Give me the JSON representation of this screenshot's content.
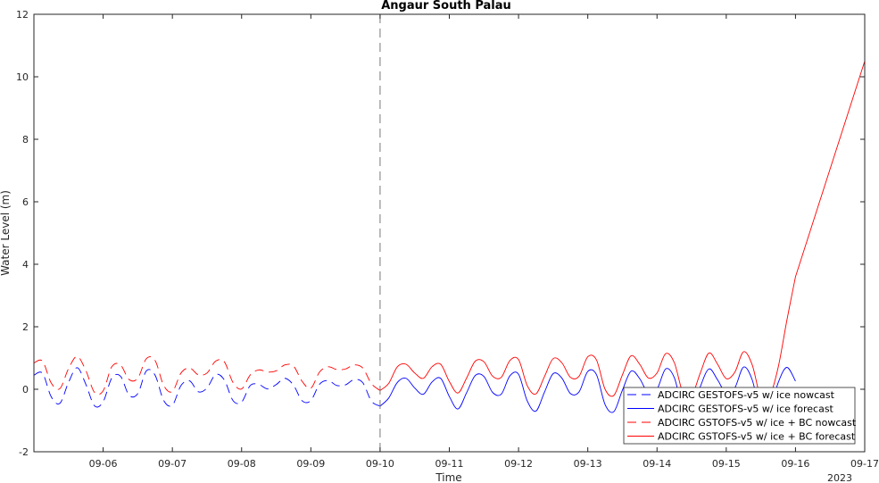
{
  "chart_data": {
    "type": "line",
    "title": "Angaur South Palau",
    "xlabel": "Time",
    "ylabel": "Water Level (m)",
    "year_label": "2023",
    "x_unit": "date",
    "xlim": [
      "2023-09-05",
      "2023-09-17"
    ],
    "ylim": [
      -2,
      12
    ],
    "x_ticks": [
      "09-06",
      "09-07",
      "09-08",
      "09-09",
      "09-10",
      "09-11",
      "09-12",
      "09-13",
      "09-14",
      "09-15",
      "09-16",
      "09-17"
    ],
    "y_ticks": [
      "-2",
      "0",
      "2",
      "4",
      "6",
      "8",
      "10",
      "12"
    ],
    "nowcast_boundary": "2023-09-10",
    "grid": false,
    "legend_position": "bottom-right",
    "series": [
      {
        "name": "ADCIRC GESTOFS-v5 w/ ice nowcast",
        "color": "#0000ff",
        "dash": true,
        "x": [
          "09-05 00:00",
          "09-05 03:00",
          "09-05 06:00",
          "09-05 09:00",
          "09-05 12:00",
          "09-05 15:00",
          "09-05 18:00",
          "09-05 21:00",
          "09-06 00:00",
          "09-06 03:00",
          "09-06 06:00",
          "09-06 09:00",
          "09-06 12:00",
          "09-06 15:00",
          "09-06 18:00",
          "09-06 21:00",
          "09-07 00:00",
          "09-07 03:00",
          "09-07 06:00",
          "09-07 09:00",
          "09-07 12:00",
          "09-07 15:00",
          "09-07 18:00",
          "09-07 21:00",
          "09-08 00:00",
          "09-08 03:00",
          "09-08 06:00",
          "09-08 09:00",
          "09-08 12:00",
          "09-08 15:00",
          "09-08 18:00",
          "09-08 21:00",
          "09-09 00:00",
          "09-09 03:00",
          "09-09 06:00",
          "09-09 09:00",
          "09-09 12:00",
          "09-09 15:00",
          "09-09 18:00",
          "09-09 21:00",
          "09-10 00:00"
        ],
        "y": [
          0.45,
          0.51,
          -0.24,
          -0.45,
          0.22,
          0.69,
          0.16,
          -0.53,
          -0.4,
          0.36,
          0.42,
          -0.19,
          -0.14,
          0.59,
          0.45,
          -0.36,
          -0.51,
          0.12,
          0.27,
          -0.08,
          0.04,
          0.47,
          0.3,
          -0.36,
          -0.41,
          0.12,
          0.15,
          0.01,
          0.15,
          0.35,
          0.13,
          -0.37,
          -0.36,
          0.16,
          0.28,
          0.12,
          0.14,
          0.31,
          0.21,
          -0.38,
          -0.54
        ]
      },
      {
        "name": "ADCIRC GESTOFS-v5 w/ ice forecast",
        "color": "#0000ff",
        "dash": false,
        "x": [
          "09-10 00:00",
          "09-10 03:00",
          "09-10 06:00",
          "09-10 09:00",
          "09-10 12:00",
          "09-10 15:00",
          "09-10 18:00",
          "09-10 21:00",
          "09-11 00:00",
          "09-11 03:00",
          "09-11 06:00",
          "09-11 09:00",
          "09-11 12:00",
          "09-11 15:00",
          "09-11 18:00",
          "09-11 21:00",
          "09-12 00:00",
          "09-12 03:00",
          "09-12 06:00",
          "09-12 09:00",
          "09-12 12:00",
          "09-12 15:00",
          "09-12 18:00",
          "09-12 21:00",
          "09-13 00:00",
          "09-13 03:00",
          "09-13 06:00",
          "09-13 09:00",
          "09-13 12:00",
          "09-13 15:00",
          "09-13 18:00",
          "09-13 21:00",
          "09-14 00:00",
          "09-14 03:00",
          "09-14 06:00",
          "09-14 09:00",
          "09-14 12:00",
          "09-14 15:00",
          "09-14 18:00",
          "09-14 21:00",
          "09-15 00:00",
          "09-15 03:00",
          "09-15 06:00",
          "09-15 09:00",
          "09-15 12:00",
          "09-15 15:00",
          "09-15 18:00",
          "09-15 21:00",
          "09-16 00:00"
        ],
        "y": [
          -0.54,
          -0.28,
          0.22,
          0.35,
          0.04,
          -0.16,
          0.23,
          0.35,
          -0.23,
          -0.63,
          -0.11,
          0.44,
          0.41,
          -0.1,
          -0.16,
          0.43,
          0.48,
          -0.37,
          -0.7,
          -0.09,
          0.5,
          0.36,
          -0.14,
          -0.08,
          0.57,
          0.47,
          -0.49,
          -0.72,
          -0.03,
          0.58,
          0.34,
          -0.14,
          0.0,
          0.65,
          0.37,
          -0.65,
          -0.73,
          0.08,
          0.65,
          0.3,
          -0.14,
          0.05,
          0.71,
          0.3,
          -0.77,
          -0.71,
          0.21,
          0.7,
          0.26
        ]
      },
      {
        "name": "ADCIRC GSTOFS-v5 w/ ice + BC nowcast",
        "color": "#ff0000",
        "dash": true,
        "x": [
          "09-05 00:00",
          "09-05 03:00",
          "09-05 06:00",
          "09-05 09:00",
          "09-05 12:00",
          "09-05 15:00",
          "09-05 18:00",
          "09-05 21:00",
          "09-06 00:00",
          "09-06 03:00",
          "09-06 06:00",
          "09-06 09:00",
          "09-06 12:00",
          "09-06 15:00",
          "09-06 18:00",
          "09-06 21:00",
          "09-07 00:00",
          "09-07 03:00",
          "09-07 06:00",
          "09-07 09:00",
          "09-07 12:00",
          "09-07 15:00",
          "09-07 18:00",
          "09-07 21:00",
          "09-08 00:00",
          "09-08 03:00",
          "09-08 06:00",
          "09-08 09:00",
          "09-08 12:00",
          "09-08 15:00",
          "09-08 18:00",
          "09-08 21:00",
          "09-09 00:00",
          "09-09 03:00",
          "09-09 06:00",
          "09-09 09:00",
          "09-09 12:00",
          "09-09 15:00",
          "09-09 18:00",
          "09-09 21:00",
          "09-10 00:00"
        ],
        "y": [
          0.84,
          0.9,
          0.2,
          0.02,
          0.66,
          1.05,
          0.6,
          -0.1,
          -0.05,
          0.72,
          0.78,
          0.31,
          0.35,
          0.98,
          0.92,
          0.12,
          -0.07,
          0.52,
          0.68,
          0.46,
          0.52,
          0.9,
          0.88,
          0.22,
          0.01,
          0.46,
          0.62,
          0.55,
          0.59,
          0.78,
          0.74,
          0.25,
          0.03,
          0.55,
          0.72,
          0.63,
          0.65,
          0.78,
          0.68,
          0.18,
          -0.04
        ]
      },
      {
        "name": "ADCIRC GSTOFS-v5 w/ ice + BC forecast",
        "color": "#ff0000",
        "dash": false,
        "x": [
          "09-10 00:00",
          "09-10 03:00",
          "09-10 06:00",
          "09-10 09:00",
          "09-10 12:00",
          "09-10 15:00",
          "09-10 18:00",
          "09-10 21:00",
          "09-11 00:00",
          "09-11 03:00",
          "09-11 06:00",
          "09-11 09:00",
          "09-11 12:00",
          "09-11 15:00",
          "09-11 18:00",
          "09-11 21:00",
          "09-12 00:00",
          "09-12 03:00",
          "09-12 06:00",
          "09-12 09:00",
          "09-12 12:00",
          "09-12 15:00",
          "09-12 18:00",
          "09-12 21:00",
          "09-13 00:00",
          "09-13 03:00",
          "09-13 06:00",
          "09-13 09:00",
          "09-13 12:00",
          "09-13 15:00",
          "09-13 18:00",
          "09-13 21:00",
          "09-14 00:00",
          "09-14 03:00",
          "09-14 06:00",
          "09-14 09:00",
          "09-14 12:00",
          "09-14 15:00",
          "09-14 18:00",
          "09-14 21:00",
          "09-15 00:00",
          "09-15 03:00",
          "09-15 06:00",
          "09-15 09:00",
          "09-15 12:00",
          "09-15 15:00",
          "09-15 18:00",
          "09-15 21:00",
          "09-16 00:00",
          "09-17 00:00"
        ],
        "y": [
          -0.04,
          0.19,
          0.72,
          0.8,
          0.52,
          0.35,
          0.72,
          0.8,
          0.25,
          -0.12,
          0.36,
          0.9,
          0.88,
          0.42,
          0.38,
          0.92,
          0.95,
          0.12,
          -0.15,
          0.41,
          0.98,
          0.85,
          0.38,
          0.42,
          1.04,
          0.94,
          0.0,
          -0.2,
          0.46,
          1.07,
          0.8,
          0.36,
          0.52,
          1.14,
          0.85,
          -0.12,
          -0.21,
          0.52,
          1.16,
          0.8,
          0.34,
          0.55,
          1.2,
          0.78,
          -0.27,
          -0.23,
          0.7,
          2.2,
          3.6,
          10.5
        ]
      }
    ]
  }
}
